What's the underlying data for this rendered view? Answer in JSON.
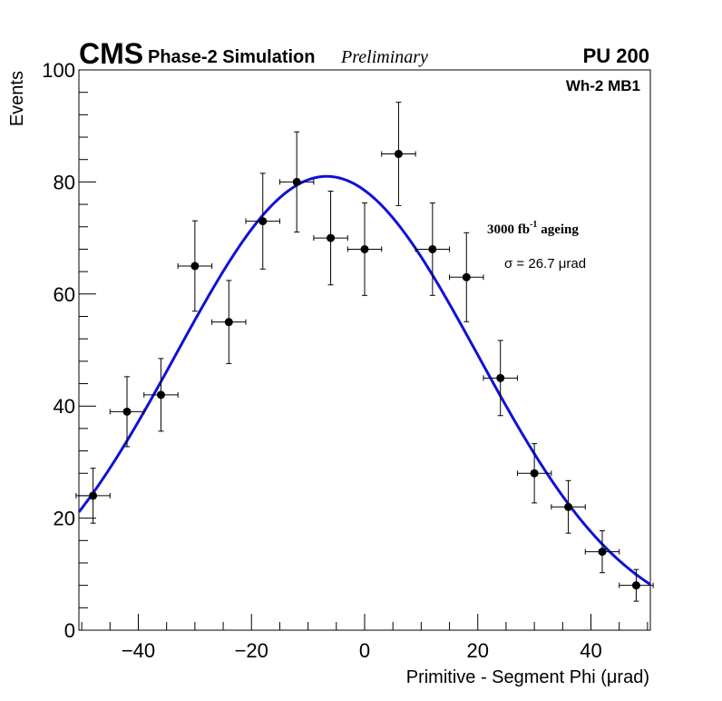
{
  "header": {
    "cms": "CMS",
    "phase": "Phase-2 Simulation",
    "preliminary": "Preliminary",
    "pileup": "PU 200"
  },
  "annotations": {
    "station": "Wh-2 MB1",
    "ageing_value": "3000 fb",
    "ageing_exp": "-1",
    "ageing_word": " ageing",
    "sigma": "σ = 26.7 μrad"
  },
  "chart_data": {
    "type": "scatter",
    "title": "",
    "xlabel": "Primitive - Segment Phi (μrad)",
    "ylabel": "Events",
    "xlim": [
      -50.5,
      50.5
    ],
    "ylim": [
      0,
      100
    ],
    "x_ticks": [
      -40,
      -20,
      0,
      20,
      40
    ],
    "x_tick_labels": [
      "−40",
      "−20",
      "0",
      "20",
      "40"
    ],
    "y_ticks": [
      0,
      20,
      40,
      60,
      80,
      100
    ],
    "y_tick_labels": [
      "0",
      "20",
      "40",
      "60",
      "80",
      "100"
    ],
    "bin_half_width": 3,
    "points": {
      "x": [
        -48,
        -42,
        -36,
        -30,
        -24,
        -18,
        -12,
        -6,
        0,
        6,
        12,
        18,
        24,
        30,
        36,
        42,
        48
      ],
      "y": [
        24,
        39,
        42,
        65,
        55,
        73,
        80,
        70,
        68,
        85,
        68,
        63,
        45,
        28,
        22,
        14,
        8
      ]
    },
    "fit": {
      "type": "gaussian",
      "name": "Gaussian fit",
      "color": "#1010d8",
      "amplitude": 81,
      "mean": -6.7,
      "sigma": 26.7
    },
    "marker_color": "#000000"
  }
}
